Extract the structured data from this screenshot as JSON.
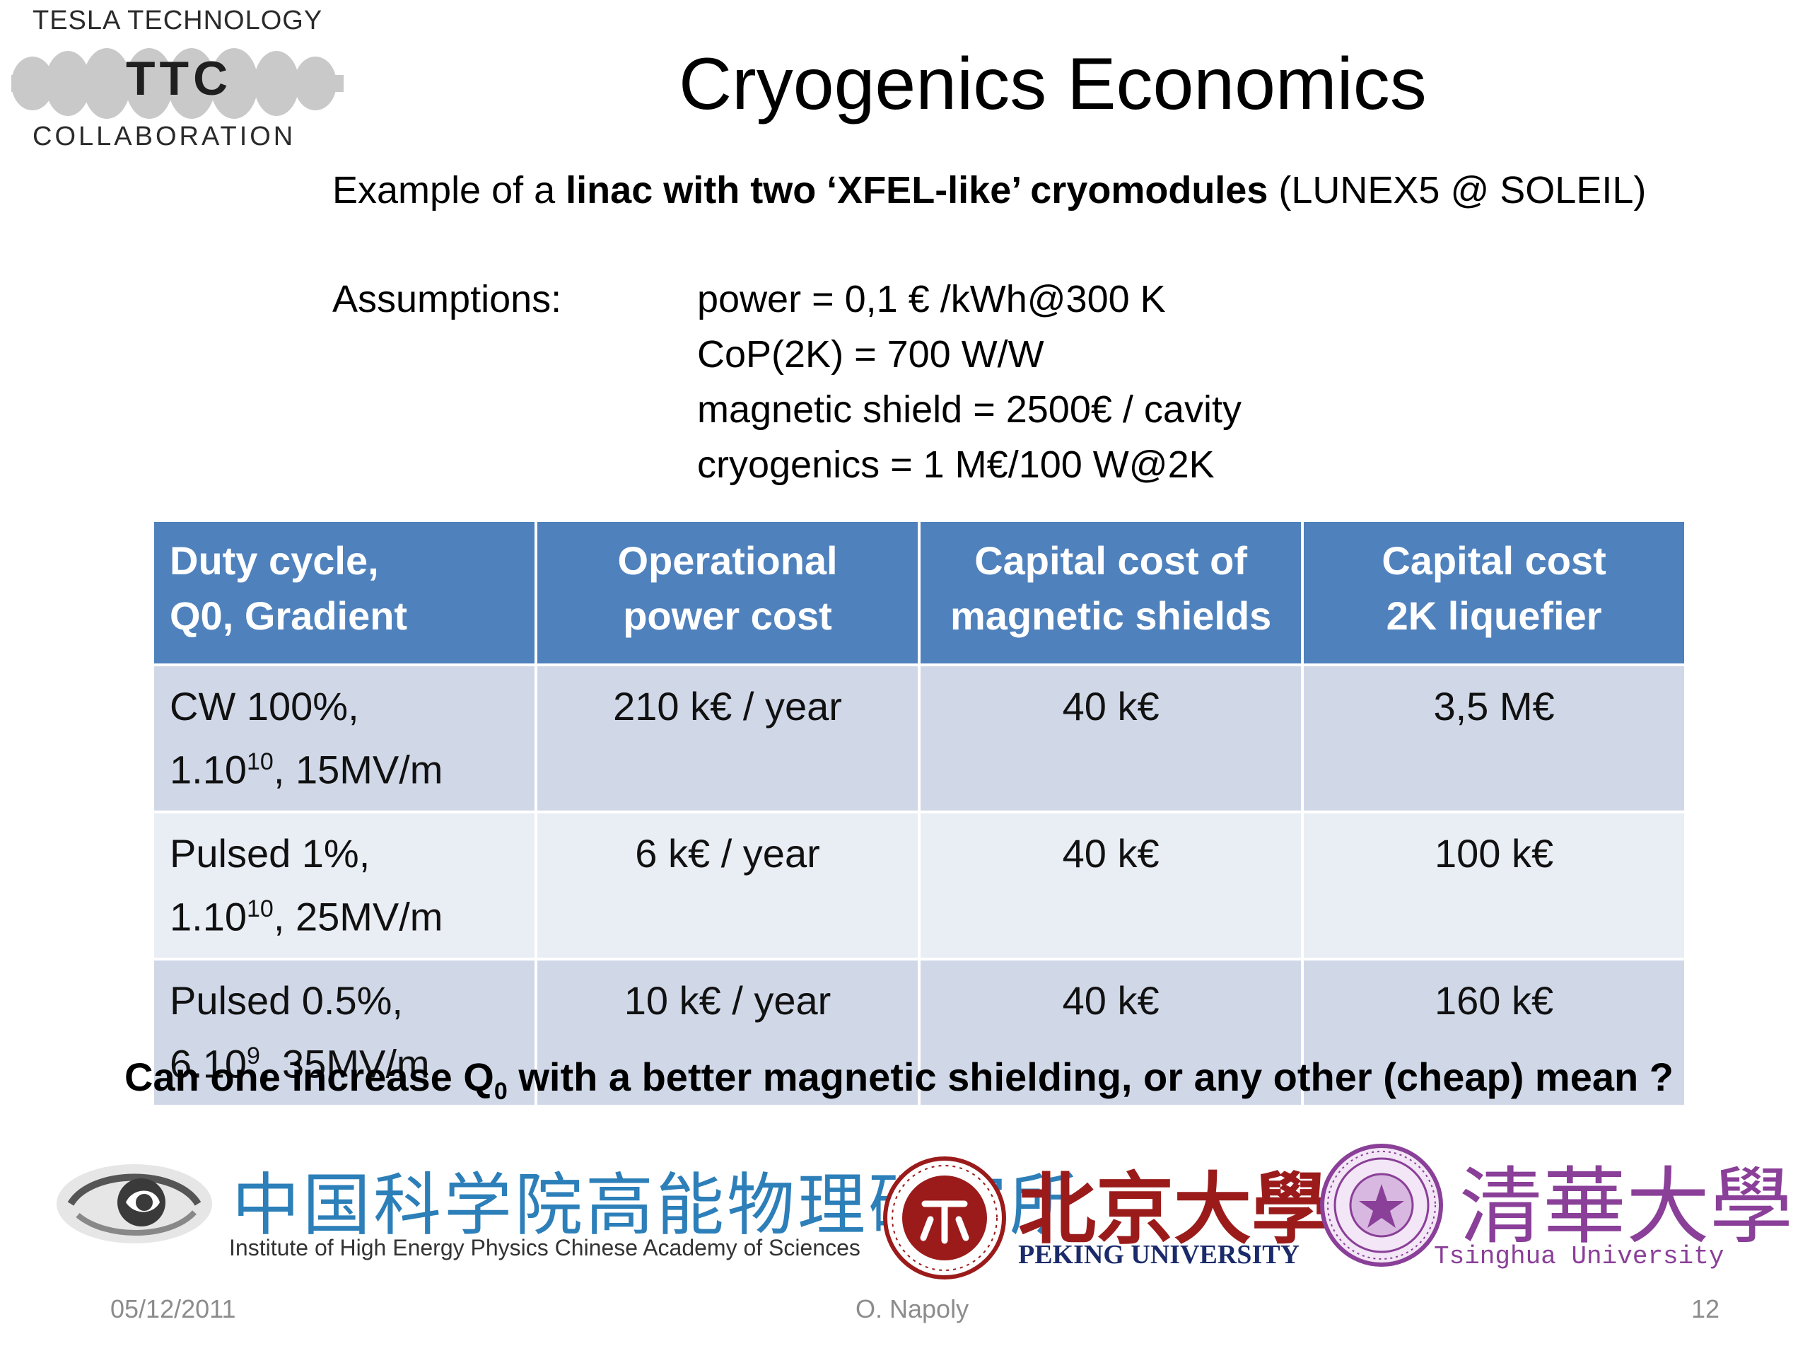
{
  "logo": {
    "top_text": "TESLA TECHNOLOGY",
    "mark": "TTC",
    "bottom_text": "COLLABORATION"
  },
  "slide": {
    "title": "Cryogenics Economics",
    "subtitle": {
      "prefix": "Example of a ",
      "bold": "linac with two ‘XFEL-like’ cryomodules",
      "suffix": " (LUNEX5 @ SOLEIL)"
    },
    "assumptions": {
      "label": "Assumptions:",
      "lines": [
        "power = 0,1 € /kWh@300 K",
        "CoP(2K)  = 700 W/W",
        "magnetic shield  = 2500€ / cavity",
        "cryogenics = 1 M€/100 W@2K"
      ]
    },
    "table": {
      "headers": [
        [
          "Duty cycle,",
          "Q0, Gradient"
        ],
        [
          "Operational",
          "power cost"
        ],
        [
          "Capital cost of",
          "magnetic shields"
        ],
        [
          "Capital cost",
          "2K liquefier"
        ]
      ],
      "rows": [
        {
          "line1": "CW 100%,",
          "base": "1.10",
          "exp": "10",
          "rest": ", 15MV/m",
          "power_cost": "210 k€ / year",
          "shield_cost": "40 k€",
          "liquefier_cost": "3,5 M€"
        },
        {
          "line1": "Pulsed 1%,",
          "base": "1.10",
          "exp": "10",
          "rest": ", 25MV/m",
          "power_cost": "6 k€ / year",
          "shield_cost": "40 k€",
          "liquefier_cost": "100 k€"
        },
        {
          "line1": "Pulsed 0.5%,",
          "base": "6.10",
          "exp": "9",
          "rest": ", 35MV/m",
          "power_cost": "10 k€ / year",
          "shield_cost": "40 k€",
          "liquefier_cost": "160 k€"
        }
      ]
    },
    "question": {
      "before": "Can one increase Q",
      "sub": "0",
      "after": " with a better magnetic shielding, or any other (cheap) mean ?"
    }
  },
  "logos": {
    "ihep_cn": "中国科学院高能物理研究所",
    "ihep_en": "Institute of High Energy Physics Chinese Academy of Sciences",
    "pku_cn": "北京大學",
    "pku_en": "PEKING UNIVERSITY",
    "thu_cn": "清華大學",
    "thu_en": "Tsinghua University"
  },
  "footer": {
    "date": "05/12/2011",
    "author": "O. Napoly",
    "page": "12"
  },
  "colors": {
    "header_bg": "#4f81bd",
    "row_odd": "#d0d8e8",
    "row_even": "#e9edf4",
    "ihep_blue": "#2c7fb8",
    "pku_red": "#9b1b1b",
    "thu_purple": "#8a3f98"
  }
}
